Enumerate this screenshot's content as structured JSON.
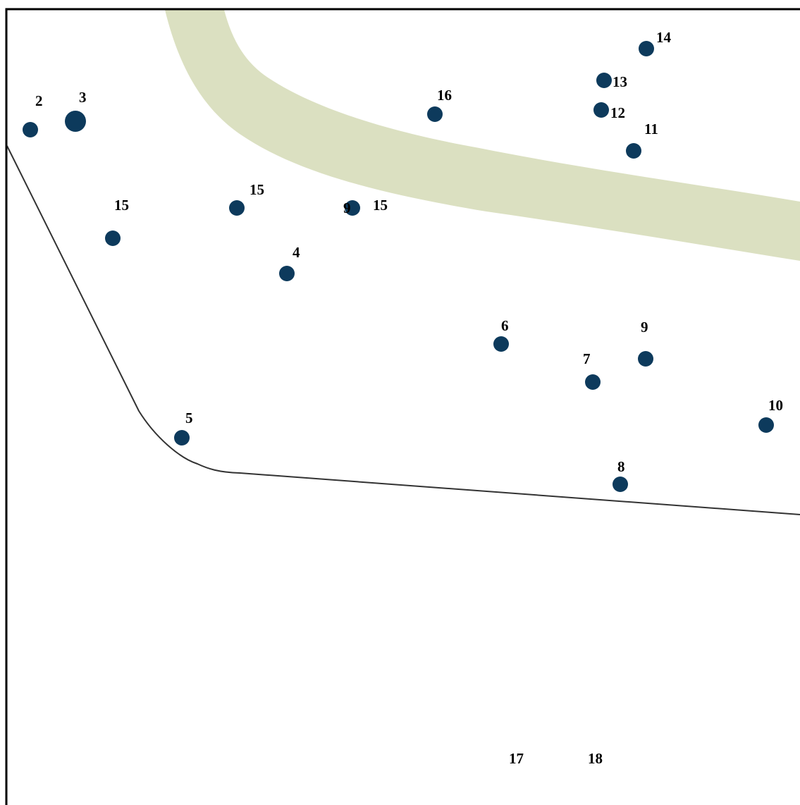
{
  "map": {
    "colors": {
      "band": "#dbe0c1",
      "marker": "#0d3a5c",
      "boundary": "#333333",
      "frame": "#000000",
      "label": "#000000"
    },
    "markers": [
      {
        "id": "m2",
        "label": "2"
      },
      {
        "id": "m3",
        "label": "3"
      },
      {
        "id": "m16",
        "label": "16"
      },
      {
        "id": "m14",
        "label": "14"
      },
      {
        "id": "m13",
        "label": "13"
      },
      {
        "id": "m12",
        "label": "12"
      },
      {
        "id": "m11",
        "label": "11"
      },
      {
        "id": "m15a",
        "label": "15"
      },
      {
        "id": "m15b",
        "label": "15"
      },
      {
        "id": "m9a",
        "label": "9"
      },
      {
        "id": "m15c",
        "label": "15"
      },
      {
        "id": "m4",
        "label": "4"
      },
      {
        "id": "m6",
        "label": "6"
      },
      {
        "id": "m9b",
        "label": "9"
      },
      {
        "id": "m7",
        "label": "7"
      },
      {
        "id": "m10",
        "label": "10"
      },
      {
        "id": "m5",
        "label": "5"
      },
      {
        "id": "m8",
        "label": "8"
      }
    ],
    "bottom_labels": [
      {
        "id": "l17",
        "label": "17"
      },
      {
        "id": "l18",
        "label": "18"
      }
    ]
  }
}
